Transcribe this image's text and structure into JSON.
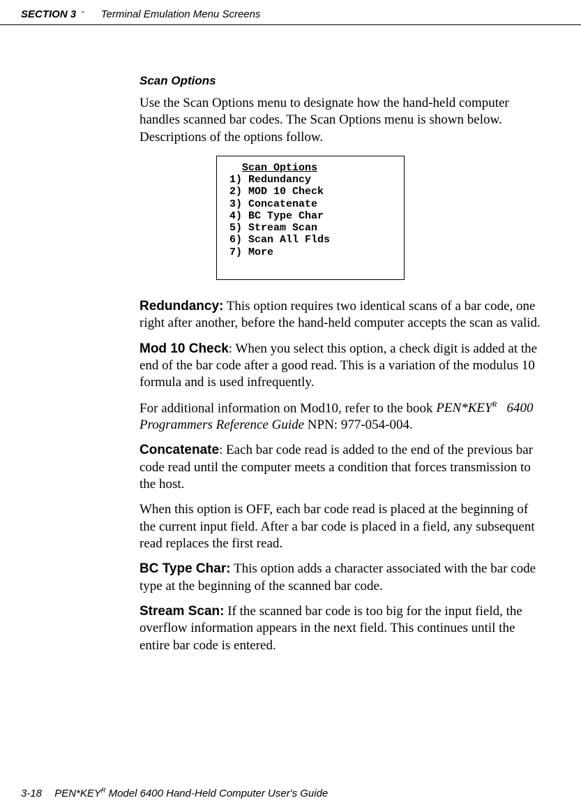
{
  "header": {
    "section": "SECTION 3",
    "separator": "\"",
    "title": "Terminal Emulation Menu Screens"
  },
  "content": {
    "subheading": "Scan Options",
    "intro": "Use the Scan Options menu to designate how the hand-held computer handles scanned bar codes.  The Scan Options menu is shown below.  Descriptions of the options follow.",
    "menu": {
      "title": "Scan Options",
      "items": [
        "1) Redundancy",
        "2) MOD 10 Check",
        "3) Concatenate",
        "4) BC Type Char",
        "5) Stream Scan",
        "6) Scan All Flds",
        "7) More"
      ]
    },
    "terms": {
      "redundancy": {
        "label": "Redundancy:",
        "text": " This option requires two identical scans of a bar code, one right after another, before the hand-held computer accepts the scan as valid."
      },
      "mod10": {
        "label": "Mod 10 Check",
        "text": ":  When you select this option, a check digit is added at the end of the bar code after a good read.  This is a variation of the modulus 10 formula and is used infrequently."
      },
      "mod10_extra_pre": "For additional information on Mod10, refer to the book ",
      "mod10_ref_a": "PEN*KEY",
      "mod10_ref_sup": "R",
      "mod10_ref_b": " 6400 Programmers Reference Guide",
      "mod10_extra_post": " NPN: 977-054-004.",
      "concat": {
        "label": "Concatenate",
        "text": ":  Each bar code read is added to the end of the previous bar code read until the computer meets a condition that forces transmission to the host."
      },
      "concat_extra": "When this option is OFF, each bar code read is placed at the beginning of the current input field.  After a bar code is placed in a field, any subsequent read replaces the first read.",
      "bctype": {
        "label": "BC Type Char:",
        "text": " This option adds a character associated with the bar code type at the beginning of the scanned bar code."
      },
      "stream": {
        "label": "Stream Scan:",
        "text": " If the scanned bar code is too big for the input field, the overflow information appears in the next field.  This continues until the entire bar code is entered."
      }
    }
  },
  "footer": {
    "pagenum": "3-18",
    "text_a": "PEN*KEY",
    "sup": "R",
    "text_b": " Model 6400 Hand-Held Computer User's Guide"
  }
}
